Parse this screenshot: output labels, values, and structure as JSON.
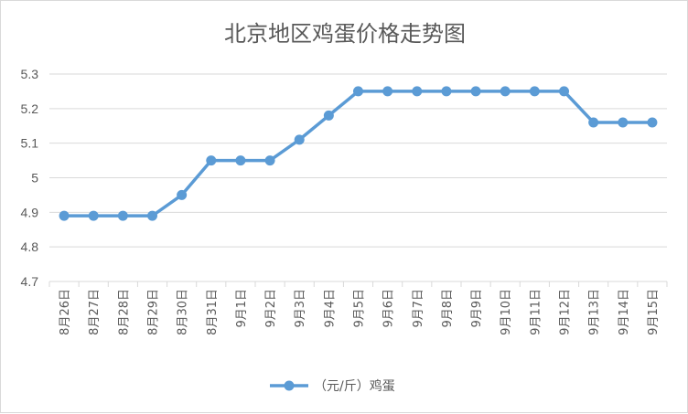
{
  "chart_data": {
    "type": "line",
    "title": "北京地区鸡蛋价格走势图",
    "xlabel": "",
    "ylabel": "",
    "categories": [
      "8月26日",
      "8月27日",
      "8月28日",
      "8月29日",
      "8月30日",
      "8月31日",
      "9月1日",
      "9月2日",
      "9月3日",
      "9月4日",
      "9月5日",
      "9月6日",
      "9月7日",
      "9月8日",
      "9月9日",
      "9月10日",
      "9月11日",
      "9月12日",
      "9月13日",
      "9月14日",
      "9月15日"
    ],
    "series": [
      {
        "name": "（元/斤）鸡蛋",
        "color": "#5b9bd5",
        "values": [
          4.89,
          4.89,
          4.89,
          4.89,
          4.95,
          5.05,
          5.05,
          5.05,
          5.11,
          5.18,
          5.25,
          5.25,
          5.25,
          5.25,
          5.25,
          5.25,
          5.25,
          5.25,
          5.16,
          5.16,
          5.16
        ]
      }
    ],
    "ylim": [
      4.7,
      5.3
    ],
    "yticks": [
      "4.7",
      "4.8",
      "4.9",
      "5",
      "5.1",
      "5.2",
      "5.3"
    ],
    "grid": "horizontal",
    "legend_position": "bottom"
  }
}
